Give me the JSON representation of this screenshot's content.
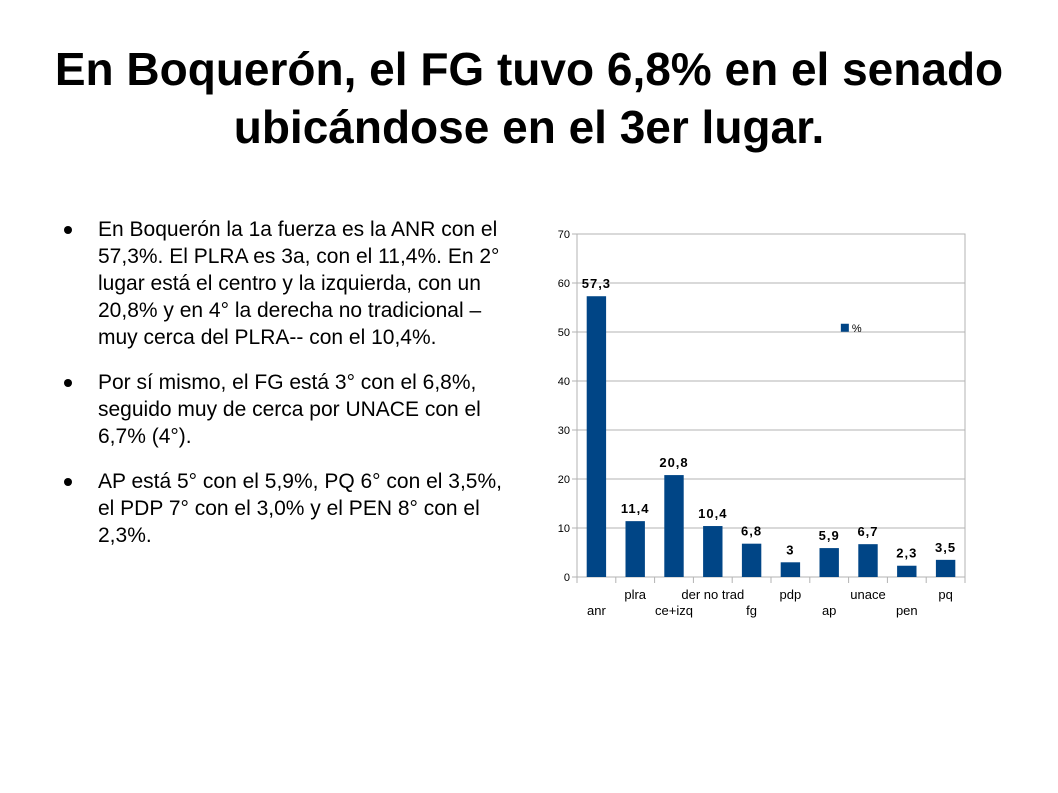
{
  "slide": {
    "title": "En Boquerón, el FG tuvo 6,8% en el senado ubicándose en el 3er lugar.",
    "bullets": [
      "En Boquerón la 1a fuerza es la ANR con el 57,3%. El PLRA es 3a, con el 11,4%. En 2° lugar está el centro y la izquierda, con un 20,8% y en 4° la derecha no tradicional –muy cerca del PLRA-- con el 10,4%.",
      "Por sí mismo, el FG está 3° con el 6,8%, seguido muy de cerca por UNACE con el 6,7% (4°).",
      "AP está 5° con el 5,9%, PQ 6° con el 3,5%, el PDP 7° con el 3,0% y el PEN 8° con el 2,3%."
    ]
  },
  "chart_data": {
    "type": "bar",
    "categories": [
      "anr",
      "plra",
      "ce+izq",
      "der no trad",
      "fg",
      "pdp",
      "ap",
      "unace",
      "pen",
      "pq"
    ],
    "series": [
      {
        "name": "%",
        "values": [
          57.3,
          11.4,
          20.8,
          10.4,
          6.8,
          3,
          5.9,
          6.7,
          2.3,
          3.5
        ],
        "labels": [
          "57,3",
          "11,4",
          "20,8",
          "10,4",
          "6,8",
          "3",
          "5,9",
          "6,7",
          "2,3",
          "3,5"
        ],
        "color": "#004586"
      }
    ],
    "ylim": [
      0,
      70
    ],
    "yticks": [
      0,
      10,
      20,
      30,
      40,
      50,
      60,
      70
    ],
    "grid": true,
    "legend": "top-right",
    "colors": {
      "bar": "#004586",
      "grid": "#b3b3b3",
      "axis": "#b3b3b3"
    }
  }
}
